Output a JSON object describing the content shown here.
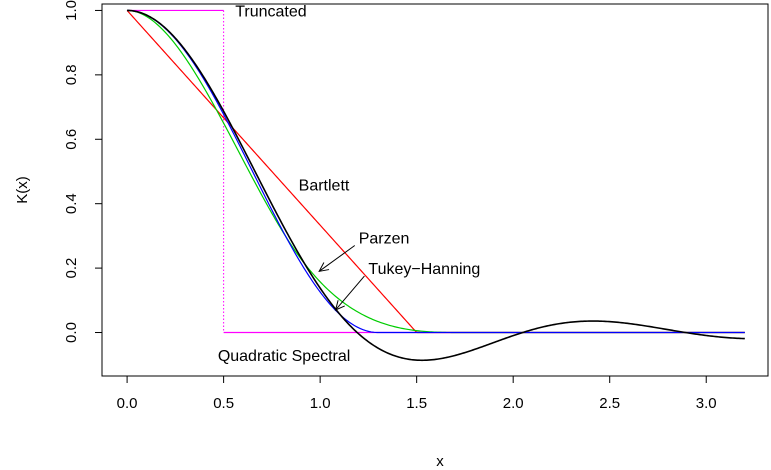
{
  "chart_data": {
    "type": "line",
    "title": "",
    "xlabel": "x",
    "ylabel": "K(x)",
    "xlim": [
      -0.13,
      3.32
    ],
    "ylim": [
      -0.135,
      1.02
    ],
    "x_ticks": [
      0.0,
      0.5,
      1.0,
      1.5,
      2.0,
      2.5,
      3.0
    ],
    "x_tick_labels": [
      "0.0",
      "0.5",
      "1.0",
      "1.5",
      "2.0",
      "2.5",
      "3.0"
    ],
    "y_ticks": [
      0.0,
      0.2,
      0.4,
      0.6,
      0.8,
      1.0
    ],
    "y_tick_labels": [
      "0.0",
      "0.2",
      "0.4",
      "0.6",
      "0.8",
      "1.0"
    ],
    "grid": false,
    "legend": "none",
    "kernels": [
      {
        "id": "truncated",
        "color": "#ff00ff",
        "x_max": 3.2
      },
      {
        "id": "bartlett",
        "color": "#ff0000",
        "x_max": 3.2
      },
      {
        "id": "parzen",
        "color": "#00cd00",
        "x_max": 3.2
      },
      {
        "id": "tukey",
        "color": "#0000ff",
        "x_max": 3.2
      },
      {
        "id": "qs",
        "color": "#000000",
        "x_max": 3.2
      }
    ],
    "annotations": [
      {
        "id": "truncated",
        "text": "Truncated",
        "x": 0.56,
        "y": 1.0,
        "anchor": "start"
      },
      {
        "id": "bartlett",
        "text": "Bartlett",
        "x": 1.02,
        "y": 0.46,
        "anchor": "middle"
      },
      {
        "id": "parzen",
        "text": "Parzen",
        "x": 1.2,
        "y": 0.295,
        "anchor": "start",
        "arrow_to": [
          0.995,
          0.19
        ]
      },
      {
        "id": "tukey",
        "text": "Tukey−Hanning",
        "x": 1.25,
        "y": 0.2,
        "anchor": "start",
        "arrow_to": [
          1.08,
          0.07
        ]
      },
      {
        "id": "qs",
        "text": "Quadratic Spectral",
        "x": 0.47,
        "y": -0.07,
        "anchor": "start"
      }
    ]
  }
}
